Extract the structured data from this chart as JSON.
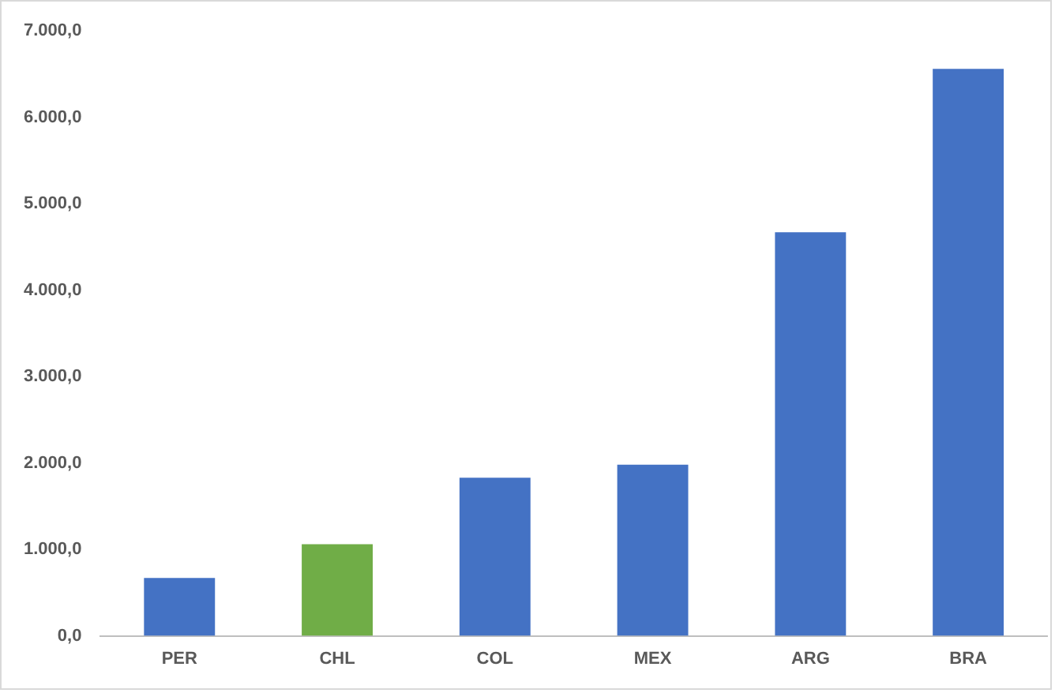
{
  "chart_data": {
    "type": "bar",
    "categories": [
      "PER",
      "CHL",
      "COL",
      "MEX",
      "ARG",
      "BRA"
    ],
    "values": [
      670,
      1060,
      1830,
      1980,
      4670,
      6560
    ],
    "colors": [
      "#4472c4",
      "#70ad47",
      "#4472c4",
      "#4472c4",
      "#4472c4",
      "#4472c4"
    ],
    "ylim": [
      0,
      7000
    ],
    "yticks": [
      {
        "value": 0,
        "label": "0,0"
      },
      {
        "value": 1000,
        "label": "1.000,0"
      },
      {
        "value": 2000,
        "label": "2.000,0"
      },
      {
        "value": 3000,
        "label": "3.000,0"
      },
      {
        "value": 4000,
        "label": "4.000,0"
      },
      {
        "value": 5000,
        "label": "5.000,0"
      },
      {
        "value": 6000,
        "label": "6.000,0"
      },
      {
        "value": 7000,
        "label": "7.000,0"
      }
    ],
    "grid": false,
    "legend": false
  }
}
